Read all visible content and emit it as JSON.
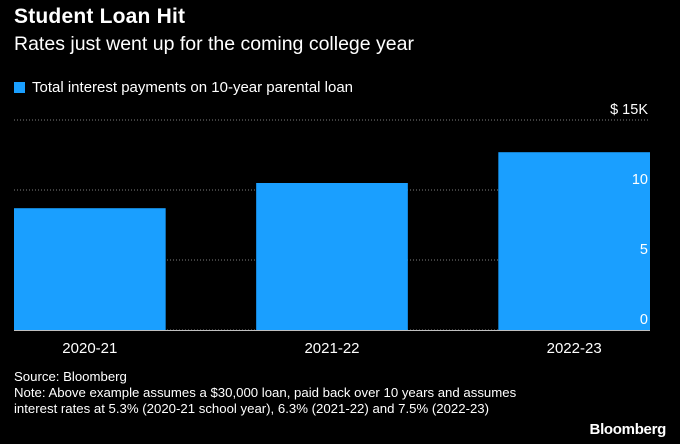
{
  "header": {
    "title": "Student Loan Hit",
    "subtitle": "Rates just went up for the coming college year"
  },
  "colors": {
    "bar": "#1a9fff",
    "grid": "#7f7f7f",
    "background": "#000000",
    "text": "#ffffff"
  },
  "chart_data": {
    "type": "bar",
    "title": "Student Loan Hit",
    "subtitle": "Rates just went up for the coming college year",
    "categories": [
      "2020-21",
      "2021-22",
      "2022-23"
    ],
    "series": [
      {
        "name": "Total interest payments on 10-year parental loan",
        "values": [
          8.7,
          10.5,
          12.7
        ]
      }
    ],
    "yticks": [
      {
        "value": 0,
        "label": "0"
      },
      {
        "value": 5,
        "label": "5"
      },
      {
        "value": 10,
        "label": "10"
      },
      {
        "value": 15,
        "label": "$ 15K"
      }
    ],
    "ylim": [
      0,
      15
    ],
    "grid": true,
    "gridStyle": "dotted",
    "yaxisPosition": "right",
    "legend": "top-left"
  },
  "footer": {
    "source": "Source: Bloomberg",
    "note": "Note: Above example assumes a $30,000 loan, paid back over 10 years and assumes interest rates at 5.3% (2020-21 school year), 6.3% (2021-22) and 7.5% (2022-23)",
    "brand": "Bloomberg"
  }
}
